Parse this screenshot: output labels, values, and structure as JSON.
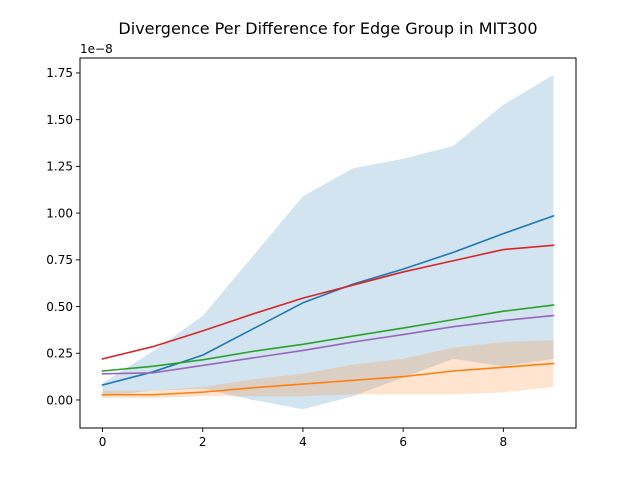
{
  "chart_data": {
    "type": "line",
    "title": "Divergence Per Difference for Edge Group in MIT300",
    "xlabel": "",
    "ylabel": "",
    "scale_label": "1e−8",
    "x": [
      0,
      1,
      2,
      3,
      4,
      5,
      6,
      7,
      8,
      9
    ],
    "xlim": [
      -0.45,
      9.45
    ],
    "ylim": [
      -0.15,
      1.83
    ],
    "xticks": [
      0,
      2,
      4,
      6,
      8
    ],
    "xtick_labels": [
      "0",
      "2",
      "4",
      "6",
      "8"
    ],
    "yticks": [
      0.0,
      0.25,
      0.5,
      0.75,
      1.0,
      1.25,
      1.5,
      1.75
    ],
    "ytick_labels": [
      "0.00",
      "0.25",
      "0.50",
      "0.75",
      "1.00",
      "1.25",
      "1.50",
      "1.75"
    ],
    "grid": false,
    "legend": "none",
    "bands": [
      {
        "color": "#1f77b4",
        "alpha": 0.2,
        "lower": [
          0.02,
          0.05,
          0.06,
          0.0,
          -0.05,
          0.02,
          0.12,
          0.22,
          0.18,
          0.22
        ],
        "upper": [
          0.09,
          0.26,
          0.45,
          0.77,
          1.09,
          1.24,
          1.29,
          1.36,
          1.58,
          1.74
        ]
      },
      {
        "color": "#ff7f0e",
        "alpha": 0.2,
        "lower": [
          0.01,
          0.01,
          0.02,
          0.02,
          0.02,
          0.03,
          0.03,
          0.03,
          0.04,
          0.07
        ],
        "upper": [
          0.05,
          0.05,
          0.07,
          0.11,
          0.14,
          0.19,
          0.22,
          0.28,
          0.31,
          0.32
        ]
      }
    ],
    "series": [
      {
        "color": "#1f77b4",
        "values": [
          0.08,
          0.15,
          0.24,
          0.38,
          0.52,
          0.62,
          0.7,
          0.79,
          0.89,
          0.985
        ]
      },
      {
        "color": "#ff7f0e",
        "values": [
          0.028,
          0.028,
          0.042,
          0.065,
          0.085,
          0.105,
          0.125,
          0.155,
          0.175,
          0.195
        ]
      },
      {
        "color": "#2ca02c",
        "values": [
          0.155,
          0.18,
          0.215,
          0.26,
          0.298,
          0.342,
          0.385,
          0.43,
          0.475,
          0.508
        ]
      },
      {
        "color": "#d62728",
        "values": [
          0.22,
          0.285,
          0.37,
          0.46,
          0.545,
          0.615,
          0.685,
          0.745,
          0.805,
          0.828
        ]
      },
      {
        "color": "#9467bd",
        "values": [
          0.14,
          0.145,
          0.185,
          0.225,
          0.265,
          0.31,
          0.35,
          0.392,
          0.425,
          0.452
        ]
      }
    ]
  }
}
